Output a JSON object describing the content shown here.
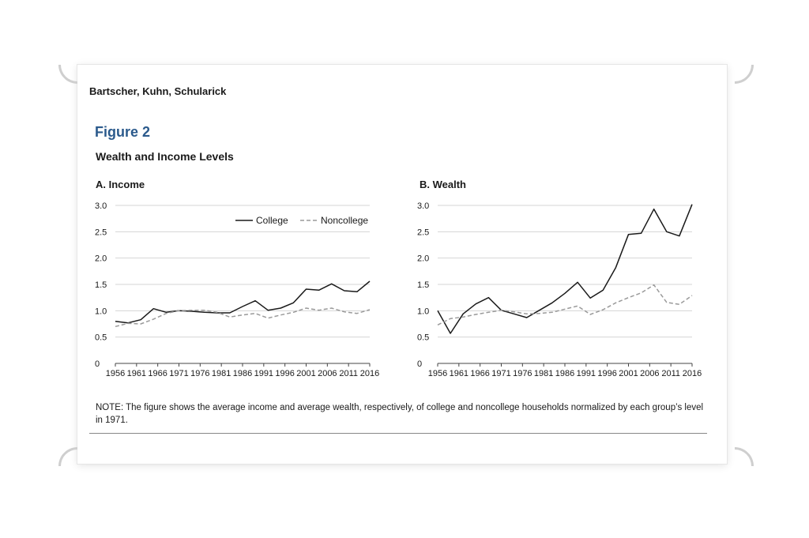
{
  "header": {
    "authors": "Bartscher, Kuhn, Schularick"
  },
  "figure": {
    "label": "Figure 2",
    "title": "Wealth and Income Levels"
  },
  "note": "NOTE: The figure shows the average income and average wealth, respectively, of college and noncollege households normalized by each group’s level in 1971.",
  "colors": {
    "college": "#1a1a1a",
    "noncollege": "#9a9a9a",
    "figure_label": "#2b5a8c"
  },
  "chart_data": [
    {
      "type": "line",
      "title": "A. Income",
      "xlabel": "",
      "ylabel": "",
      "x": [
        1956,
        1959,
        1962,
        1965,
        1968,
        1971,
        1974,
        1977,
        1980,
        1983,
        1986,
        1989,
        1992,
        1995,
        1998,
        2001,
        2004,
        2007,
        2010,
        2013,
        2016
      ],
      "x_ticks": [
        "1956",
        "1961",
        "1966",
        "1971",
        "1976",
        "1981",
        "1986",
        "1991",
        "1996",
        "2001",
        "2006",
        "2011",
        "2016"
      ],
      "y_ticks": [
        "0",
        "0.5",
        "1.0",
        "1.5",
        "2.0",
        "2.5",
        "3.0"
      ],
      "ylim": [
        0,
        3.0
      ],
      "grid": "horizontal",
      "legend": "top-right",
      "series": [
        {
          "name": "College",
          "style": "solid",
          "values": [
            0.8,
            0.77,
            0.83,
            1.04,
            0.97,
            1.0,
            0.99,
            0.97,
            0.96,
            0.96,
            1.08,
            1.19,
            1.01,
            1.05,
            1.15,
            1.41,
            1.39,
            1.51,
            1.38,
            1.36,
            1.56
          ]
        },
        {
          "name": "Noncollege",
          "style": "dashed",
          "values": [
            0.7,
            0.76,
            0.75,
            0.84,
            0.95,
            1.0,
            1.01,
            1.01,
            0.97,
            0.88,
            0.92,
            0.95,
            0.86,
            0.92,
            0.97,
            1.05,
            1.01,
            1.05,
            0.98,
            0.95,
            1.02
          ]
        }
      ]
    },
    {
      "type": "line",
      "title": "B. Wealth",
      "xlabel": "",
      "ylabel": "",
      "x": [
        1956,
        1959,
        1962,
        1965,
        1968,
        1971,
        1974,
        1977,
        1980,
        1983,
        1986,
        1989,
        1992,
        1995,
        1998,
        2001,
        2004,
        2007,
        2010,
        2013,
        2016
      ],
      "x_ticks": [
        "1956",
        "1961",
        "1966",
        "1971",
        "1976",
        "1981",
        "1986",
        "1991",
        "1996",
        "2001",
        "2006",
        "2011",
        "2016"
      ],
      "y_ticks": [
        "0",
        "0.5",
        "1.0",
        "1.5",
        "2.0",
        "2.5",
        "3.0"
      ],
      "ylim": [
        0,
        3.0
      ],
      "grid": "horizontal",
      "legend": "",
      "series": [
        {
          "name": "College",
          "style": "solid",
          "values": [
            1.0,
            0.57,
            0.94,
            1.13,
            1.25,
            1.01,
            0.94,
            0.87,
            1.01,
            1.15,
            1.33,
            1.54,
            1.24,
            1.39,
            1.82,
            2.45,
            2.47,
            2.93,
            2.5,
            2.42,
            3.02
          ]
        },
        {
          "name": "Noncollege",
          "style": "dashed",
          "values": [
            0.73,
            0.85,
            0.88,
            0.93,
            0.97,
            1.01,
            0.98,
            0.94,
            0.95,
            0.97,
            1.03,
            1.09,
            0.93,
            1.02,
            1.15,
            1.25,
            1.34,
            1.49,
            1.16,
            1.12,
            1.29
          ]
        }
      ]
    }
  ]
}
